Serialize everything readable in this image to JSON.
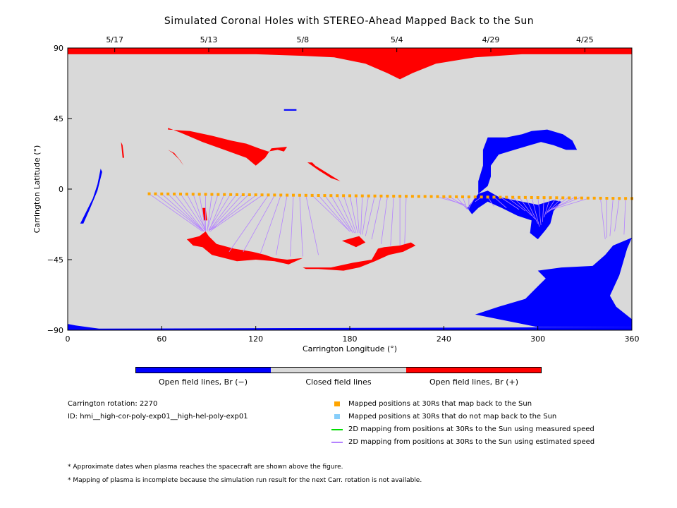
{
  "title": "Simulated Coronal Holes with STEREO-Ahead Mapped Back to the Sun",
  "colors": {
    "background": "#d9d9d9",
    "open_negative": "#0000ff",
    "open_positive": "#ff0000",
    "closed": "#d9d9d9",
    "mapped_back": "#ffa500",
    "not_mapped_back": "#87cefa",
    "measured_speed": "#00dd00",
    "estimated_speed": "#b482ff"
  },
  "chart_data": {
    "type": "map",
    "title": "Simulated Coronal Holes with STEREO-Ahead Mapped Back to the Sun",
    "xlabel": "Carrington Longitude (°)",
    "ylabel": "Carrington Latitude (°)",
    "xlim": [
      0,
      360
    ],
    "ylim": [
      -90,
      90
    ],
    "x_ticks": [
      0,
      60,
      120,
      180,
      240,
      300,
      360
    ],
    "y_ticks": [
      90,
      45,
      0,
      -45,
      -90
    ],
    "top_axis_dates": [
      {
        "label": "5/17",
        "lon": 30
      },
      {
        "label": "5/13",
        "lon": 90
      },
      {
        "label": "5/8",
        "lon": 150
      },
      {
        "label": "5/4",
        "lon": 210
      },
      {
        "label": "4/29",
        "lon": 270
      },
      {
        "label": "4/25",
        "lon": 330
      }
    ],
    "mapped_points_30Rs": {
      "lon_start": 52,
      "lon_end": 360,
      "step": 4,
      "lat_start": -3,
      "lat_end": -6
    },
    "mapping_lines": [
      {
        "from": [
          52,
          -3
        ],
        "to": [
          86,
          -27
        ]
      },
      {
        "from": [
          56,
          -3
        ],
        "to": [
          87,
          -27
        ]
      },
      {
        "from": [
          60,
          -3
        ],
        "to": [
          87,
          -27
        ]
      },
      {
        "from": [
          64,
          -3
        ],
        "to": [
          87,
          -27
        ]
      },
      {
        "from": [
          68,
          -3
        ],
        "to": [
          87,
          -27
        ]
      },
      {
        "from": [
          72,
          -3
        ],
        "to": [
          88,
          -27
        ]
      },
      {
        "from": [
          76,
          -3
        ],
        "to": [
          88,
          -26
        ]
      },
      {
        "from": [
          80,
          -3
        ],
        "to": [
          88,
          -27
        ]
      },
      {
        "from": [
          84,
          -3
        ],
        "to": [
          88,
          -27
        ]
      },
      {
        "from": [
          88,
          -3
        ],
        "to": [
          88,
          -27
        ]
      },
      {
        "from": [
          92,
          -3
        ],
        "to": [
          89,
          -27
        ]
      },
      {
        "from": [
          96,
          -3
        ],
        "to": [
          89,
          -26
        ]
      },
      {
        "from": [
          100,
          -3
        ],
        "to": [
          90,
          -27
        ]
      },
      {
        "from": [
          104,
          -3
        ],
        "to": [
          90,
          -26
        ]
      },
      {
        "from": [
          108,
          -3
        ],
        "to": [
          90,
          -27
        ]
      },
      {
        "from": [
          112,
          -3
        ],
        "to": [
          91,
          -26
        ]
      },
      {
        "from": [
          116,
          -3
        ],
        "to": [
          91,
          -27
        ]
      },
      {
        "from": [
          120,
          -4
        ],
        "to": [
          91,
          -26
        ]
      },
      {
        "from": [
          124,
          -4
        ],
        "to": [
          92,
          -26
        ]
      },
      {
        "from": [
          128,
          -4
        ],
        "to": [
          103,
          -40
        ]
      },
      {
        "from": [
          132,
          -4
        ],
        "to": [
          112,
          -40
        ]
      },
      {
        "from": [
          136,
          -4
        ],
        "to": [
          123,
          -41
        ]
      },
      {
        "from": [
          140,
          -4
        ],
        "to": [
          133,
          -42
        ]
      },
      {
        "from": [
          144,
          -4
        ],
        "to": [
          142,
          -43
        ]
      },
      {
        "from": [
          148,
          -4
        ],
        "to": [
          150,
          -43
        ]
      },
      {
        "from": [
          152,
          -4
        ],
        "to": [
          160,
          -42
        ]
      },
      {
        "from": [
          156,
          -4
        ],
        "to": [
          180,
          -27
        ]
      },
      {
        "from": [
          160,
          -4
        ],
        "to": [
          180,
          -27
        ]
      },
      {
        "from": [
          164,
          -4
        ],
        "to": [
          181,
          -27
        ]
      },
      {
        "from": [
          168,
          -4
        ],
        "to": [
          182,
          -28
        ]
      },
      {
        "from": [
          172,
          -4
        ],
        "to": [
          183,
          -28
        ]
      },
      {
        "from": [
          176,
          -4
        ],
        "to": [
          184,
          -28
        ]
      },
      {
        "from": [
          180,
          -4
        ],
        "to": [
          185,
          -28
        ]
      },
      {
        "from": [
          184,
          -4
        ],
        "to": [
          186,
          -28
        ]
      },
      {
        "from": [
          188,
          -4
        ],
        "to": [
          187,
          -29
        ]
      },
      {
        "from": [
          192,
          -4
        ],
        "to": [
          188,
          -29
        ]
      },
      {
        "from": [
          196,
          -4
        ],
        "to": [
          190,
          -30
        ]
      },
      {
        "from": [
          200,
          -4
        ],
        "to": [
          194,
          -32
        ]
      },
      {
        "from": [
          204,
          -5
        ],
        "to": [
          200,
          -35
        ]
      },
      {
        "from": [
          208,
          -5
        ],
        "to": [
          206,
          -36
        ]
      },
      {
        "from": [
          212,
          -5
        ],
        "to": [
          212,
          -36
        ]
      },
      {
        "from": [
          216,
          -5
        ],
        "to": [
          215,
          -35
        ]
      },
      {
        "from": [
          236,
          -5
        ],
        "to": [
          254,
          -10
        ]
      },
      {
        "from": [
          240,
          -5
        ],
        "to": [
          254,
          -11
        ]
      },
      {
        "from": [
          244,
          -5
        ],
        "to": [
          255,
          -12
        ]
      },
      {
        "from": [
          248,
          -5
        ],
        "to": [
          255,
          -13
        ]
      },
      {
        "from": [
          252,
          -5
        ],
        "to": [
          255,
          -13
        ]
      },
      {
        "from": [
          256,
          -5
        ],
        "to": [
          256,
          -13
        ]
      },
      {
        "from": [
          260,
          -5
        ],
        "to": [
          256,
          -12
        ]
      },
      {
        "from": [
          264,
          -5
        ],
        "to": [
          260,
          -8
        ]
      },
      {
        "from": [
          268,
          -5
        ],
        "to": [
          272,
          -11
        ]
      },
      {
        "from": [
          272,
          -5
        ],
        "to": [
          280,
          -12
        ]
      },
      {
        "from": [
          276,
          -5
        ],
        "to": [
          288,
          -13
        ]
      },
      {
        "from": [
          280,
          -5
        ],
        "to": [
          292,
          -14
        ]
      },
      {
        "from": [
          284,
          -5
        ],
        "to": [
          296,
          -17
        ]
      },
      {
        "from": [
          288,
          -5
        ],
        "to": [
          298,
          -19
        ]
      },
      {
        "from": [
          292,
          -5
        ],
        "to": [
          300,
          -22
        ]
      },
      {
        "from": [
          296,
          -5
        ],
        "to": [
          301,
          -24
        ]
      },
      {
        "from": [
          300,
          -5
        ],
        "to": [
          302,
          -23
        ]
      },
      {
        "from": [
          304,
          -5
        ],
        "to": [
          303,
          -21
        ]
      },
      {
        "from": [
          308,
          -5
        ],
        "to": [
          304,
          -18
        ]
      },
      {
        "from": [
          312,
          -5
        ],
        "to": [
          305,
          -16
        ]
      },
      {
        "from": [
          316,
          -5
        ],
        "to": [
          306,
          -15
        ]
      },
      {
        "from": [
          320,
          -5
        ],
        "to": [
          306,
          -15
        ]
      },
      {
        "from": [
          324,
          -5
        ],
        "to": [
          307,
          -14
        ]
      },
      {
        "from": [
          328,
          -5
        ],
        "to": [
          308,
          -13
        ]
      },
      {
        "from": [
          332,
          -6
        ],
        "to": [
          309,
          -13
        ]
      },
      {
        "from": [
          340,
          -6
        ],
        "to": [
          343,
          -32
        ]
      },
      {
        "from": [
          344,
          -6
        ],
        "to": [
          344,
          -31
        ]
      },
      {
        "from": [
          348,
          -6
        ],
        "to": [
          346,
          -30
        ]
      },
      {
        "from": [
          352,
          -6
        ],
        "to": [
          349,
          -27
        ]
      },
      {
        "from": [
          356,
          -6
        ],
        "to": [
          355,
          -29
        ]
      }
    ],
    "regions": {
      "open_positive": [
        {
          "name": "north polar cap",
          "lon_range": [
            0,
            360
          ],
          "lat_top": 90
        },
        {
          "name": "southern hole near lon 90",
          "lon_range": [
            75,
            140
          ]
        },
        {
          "name": "southern hole near lon 190",
          "lon_range": [
            150,
            220
          ]
        },
        {
          "name": "northern band lon 65-130",
          "lon_range": [
            64,
            130
          ]
        }
      ],
      "open_negative": [
        {
          "name": "south polar cap",
          "lon_range": [
            0,
            360
          ],
          "lat_bottom": -90
        },
        {
          "name": "large southern hole",
          "lon_range": [
            290,
            360
          ]
        },
        {
          "name": "northern hole near lon 290",
          "lon_range": [
            260,
            320
          ]
        },
        {
          "name": "equatorial hole near lon 300",
          "lon_range": [
            255,
            310
          ]
        },
        {
          "name": "western strip",
          "lon_range": [
            0,
            22
          ]
        }
      ]
    }
  },
  "colorbar": {
    "left_label": "Open field lines, Br (−)",
    "mid_label": "Closed field lines",
    "right_label": "Open field lines, Br (+)"
  },
  "info": {
    "rotation": "Carrington rotation: 2270",
    "id": "ID: hmi__high-cor-poly-exp01__high-hel-poly-exp01"
  },
  "legend": [
    {
      "label": "Mapped positions at 30Rs that map back to the Sun",
      "kind": "marker",
      "color": "#ffa500"
    },
    {
      "label": "Mapped positions at 30Rs that do not map back to the Sun",
      "kind": "marker",
      "color": "#87cefa"
    },
    {
      "label": "2D mapping from positions at 30Rs to the Sun using measured speed",
      "kind": "line",
      "color": "#00dd00"
    },
    {
      "label": "2D mapping from positions at 30Rs to the Sun using estimated speed",
      "kind": "line",
      "color": "#b482ff"
    }
  ],
  "notes": [
    "* Approximate dates when plasma reaches the spacecraft are shown above the figure.",
    "* Mapping of plasma is incomplete because the simulation run result for the next Carr. rotation is not available."
  ]
}
